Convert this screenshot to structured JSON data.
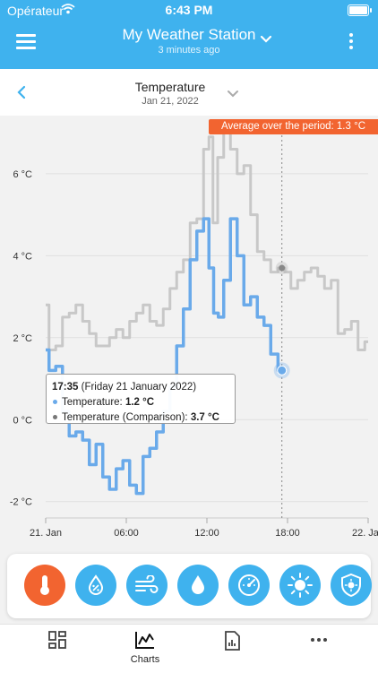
{
  "status": {
    "carrier": "Opérateur",
    "time": "6:43 PM"
  },
  "header": {
    "title": "My Weather Station",
    "subtitle": "3 minutes ago"
  },
  "subheader": {
    "title": "Temperature",
    "date": "Jan 21, 2022"
  },
  "average_badge": "Average over the period: 1.3 °C",
  "tooltip": {
    "time": "17:35",
    "date": "(Friday 21 January 2022)",
    "row1_label": "Temperature:",
    "row1_value": "1.2 °C",
    "row2_label": "Temperature (Comparison):",
    "row2_value": "3.7 °C"
  },
  "sensors": [
    {
      "icon": "thermometer-icon",
      "active": true
    },
    {
      "icon": "humidity-icon",
      "active": false
    },
    {
      "icon": "wind-icon",
      "active": false
    },
    {
      "icon": "rain-drop-icon",
      "active": false
    },
    {
      "icon": "pressure-gauge-icon",
      "active": false
    },
    {
      "icon": "sun-icon",
      "active": false
    },
    {
      "icon": "uv-shield-icon",
      "active": false
    }
  ],
  "tabs": [
    {
      "label": "",
      "icon": "dashboard-icon"
    },
    {
      "label": "Charts",
      "icon": "charts-icon"
    },
    {
      "label": "",
      "icon": "report-icon"
    },
    {
      "label": "",
      "icon": "more-icon"
    }
  ],
  "colors": {
    "accent": "#3fb2ee",
    "highlight": "#f26430",
    "comparison": "#c8c8c8",
    "series": "#6aaaea"
  },
  "chart_data": {
    "type": "line",
    "y_tick_labels": [
      "-2 °C",
      "0 °C",
      "2 °C",
      "4 °C",
      "6 °C"
    ],
    "x_tick_labels": [
      "21. Jan",
      "06:00",
      "12:00",
      "18:00",
      "22. Jan"
    ],
    "ylim": [
      -2.4,
      7.2
    ],
    "xlim_hours": [
      0,
      24
    ],
    "cursor_hour": 17.58,
    "series": [
      {
        "name": "Temperature",
        "x": [
          0,
          0.5,
          1,
          1.5,
          2,
          2.5,
          3,
          3.5,
          4,
          4.5,
          5,
          5.5,
          6,
          6.5,
          7,
          7.5,
          8,
          8.5,
          9,
          9.5,
          10,
          10.5,
          11,
          11.5,
          12,
          12.3,
          12.7,
          13,
          13.5,
          14,
          14.5,
          15,
          15.5,
          16,
          16.5,
          17,
          17.58
        ],
        "y": [
          1.7,
          1.2,
          1.3,
          0.2,
          -0.4,
          -0.3,
          -0.5,
          -1.1,
          -0.6,
          -1.4,
          -1.7,
          -1.2,
          -1.0,
          -1.6,
          -1.8,
          -0.9,
          -0.7,
          -0.3,
          0.2,
          0.8,
          1.8,
          2.7,
          3.9,
          4.6,
          4.9,
          3.7,
          2.6,
          2.5,
          3.4,
          4.9,
          4.0,
          2.8,
          3.0,
          2.5,
          2.3,
          1.6,
          1.2
        ]
      },
      {
        "name": "Temperature (Comparison)",
        "x": [
          0,
          0.5,
          1,
          1.5,
          2,
          2.5,
          3,
          3.5,
          4,
          4.5,
          5,
          5.5,
          6,
          6.5,
          7,
          7.5,
          8,
          8.5,
          9,
          9.5,
          10,
          10.5,
          11,
          11.5,
          12,
          12.3,
          12.6,
          13,
          13.5,
          14,
          14.5,
          15,
          15.5,
          16,
          16.5,
          17,
          17.58,
          18,
          18.5,
          19,
          19.5,
          20,
          20.5,
          21,
          21.5,
          22,
          22.5,
          23,
          23.5,
          24
        ],
        "y": [
          2.8,
          1.7,
          1.8,
          2.5,
          2.6,
          2.8,
          2.4,
          2.1,
          1.8,
          1.8,
          2.0,
          2.2,
          2.0,
          2.4,
          2.6,
          2.8,
          2.4,
          2.3,
          2.7,
          3.2,
          3.6,
          3.9,
          4.8,
          4.9,
          6.6,
          6.9,
          4.8,
          6.4,
          7.0,
          6.6,
          6.0,
          6.2,
          5.0,
          4.1,
          3.9,
          3.6,
          3.7,
          3.6,
          3.2,
          3.4,
          3.6,
          3.7,
          3.5,
          3.2,
          3.4,
          2.1,
          2.2,
          2.4,
          1.7,
          1.9
        ]
      }
    ]
  }
}
